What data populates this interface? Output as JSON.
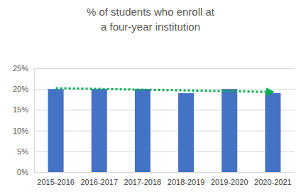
{
  "chart_data": {
    "type": "bar",
    "title": "% of students who enroll at a four-year institution",
    "categories": [
      "2015-2016",
      "2016-2017",
      "2017-2018",
      "2018-2019",
      "2019-2020",
      "2020-2021"
    ],
    "values": [
      20,
      20,
      20,
      19,
      20,
      19
    ],
    "color": "#4472c4",
    "ylim": [
      0,
      25
    ],
    "yticks": [
      {
        "value": 0,
        "label": "0%"
      },
      {
        "value": 5,
        "label": "5%"
      },
      {
        "value": 10,
        "label": "10%"
      },
      {
        "value": 15,
        "label": "15%"
      },
      {
        "value": 20,
        "label": "20%"
      },
      {
        "value": 25,
        "label": "25%"
      }
    ],
    "grid": true,
    "trendline": {
      "values": [
        20.2,
        19.3
      ],
      "color": "#00b050",
      "line_style": "dotted"
    }
  }
}
